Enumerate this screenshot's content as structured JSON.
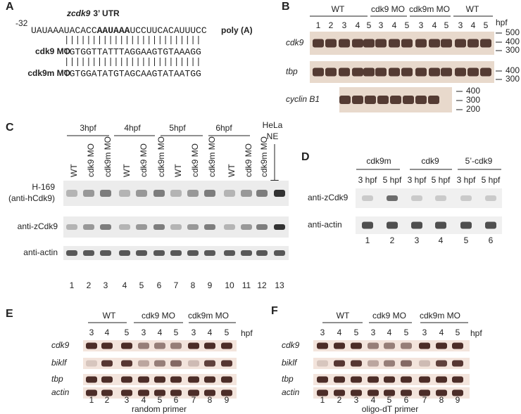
{
  "panel_a": {
    "label": "A",
    "position": "-32",
    "gene": "zcdk9",
    "utr": "3’ UTR",
    "sequence": [
      "UAUAAAUACACC",
      "AAUAAA",
      "UCCUUCACAUUUCC"
    ],
    "tail": "poly (A)",
    "morpholinos": [
      {
        "name": "cdk9 MO",
        "sequence": "TGTGGTTATTTAGGAAGTGTAAAGG"
      },
      {
        "name": "cdk9m MO",
        "sequence": "TGTGGATATGTAGCAAGTATAATGG"
      }
    ]
  },
  "panel_b": {
    "label": "B",
    "groups": [
      "WT",
      "cdk9 MO",
      "cdk9m MO",
      "WT"
    ],
    "lanes": [
      "1",
      "2",
      "3",
      "4",
      "5",
      "3",
      "4",
      "5",
      "3",
      "4",
      "5",
      "3",
      "4",
      "5"
    ],
    "unit": "hpf",
    "rows": [
      {
        "name": "cdk9",
        "markers": [
          "500",
          "400",
          "300"
        ]
      },
      {
        "name": "tbp",
        "markers": [
          "400",
          "300"
        ]
      },
      {
        "name": "cyclin B1",
        "markers": [
          "400",
          "300",
          "200"
        ]
      }
    ]
  },
  "panel_c": {
    "label": "C",
    "groups": [
      "3hpf",
      "4hpf",
      "5hpf",
      "6hpf"
    ],
    "extra_lane": [
      "HeLa",
      "NE"
    ],
    "lane_labels": [
      "WT",
      "cdk9 MO",
      "cdk9m MO",
      "WT",
      "cdk9 MO",
      "cdk9m MO",
      "WT",
      "cdk9 MO",
      "cdk9m MO",
      "WT",
      "cdk9 MO",
      "cdk9m MO"
    ],
    "rows": [
      [
        "H-169",
        "(anti-hCdk9)"
      ],
      [
        "anti-zCdk9"
      ],
      [
        "anti-actin"
      ]
    ],
    "lane_numbers": [
      "1",
      "2",
      "3",
      "4",
      "5",
      "6",
      "7",
      "8",
      "9",
      "10",
      "11",
      "12",
      "13"
    ]
  },
  "panel_d": {
    "label": "D",
    "groups": [
      "cdk9m",
      "cdk9",
      "5’-cdk9"
    ],
    "lane_labels": [
      "3 hpf",
      "5 hpf",
      "3 hpf",
      "5 hpf",
      "3 hpf",
      "5 hpf"
    ],
    "rows": [
      "anti-zCdk9",
      "anti-actin"
    ],
    "lane_numbers": [
      "1",
      "2",
      "3",
      "4",
      "5",
      "6"
    ]
  },
  "panel_e": {
    "label": "E",
    "groups": [
      "WT",
      "cdk9 MO",
      "cdk9m MO"
    ],
    "lanes": [
      "3",
      "4",
      "5",
      "3",
      "4",
      "5",
      "3",
      "4",
      "5"
    ],
    "unit": "hpf",
    "rows": [
      "cdk9",
      "biklf",
      "tbp",
      "actin"
    ],
    "lane_numbers": [
      "1",
      "2",
      "3",
      "4",
      "5",
      "6",
      "7",
      "8",
      "9"
    ],
    "footer": "random primer"
  },
  "panel_f": {
    "label": "F",
    "groups": [
      "WT",
      "cdk9 MO",
      "cdk9m MO"
    ],
    "lanes": [
      "3",
      "4",
      "5",
      "3",
      "4",
      "5",
      "3",
      "4",
      "5"
    ],
    "unit": "hpf",
    "rows": [
      "cdk9",
      "biklf",
      "tbp",
      "actin"
    ],
    "lane_numbers": [
      "1",
      "2",
      "3",
      "4",
      "5",
      "6",
      "7",
      "8",
      "9"
    ],
    "footer": "oligo-dT primer"
  }
}
